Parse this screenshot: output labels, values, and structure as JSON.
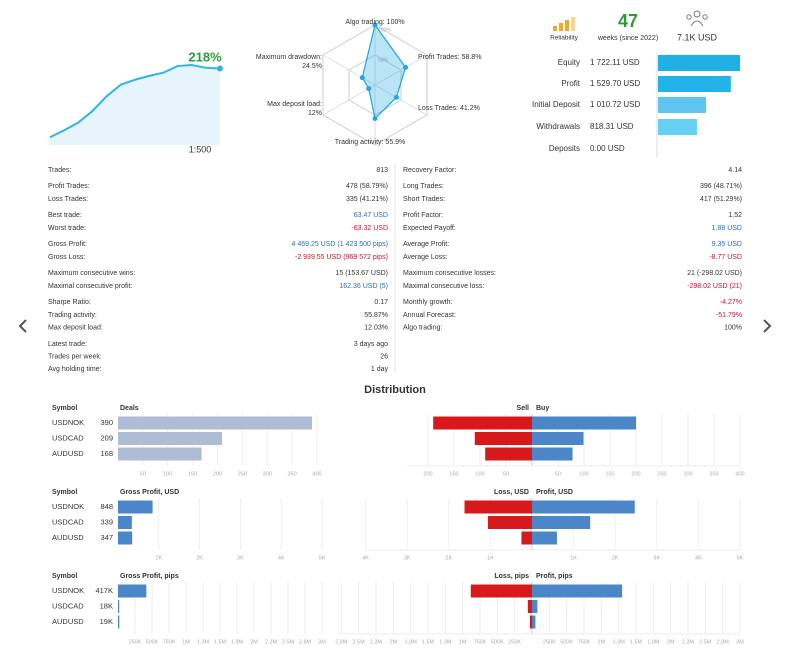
{
  "growth": {
    "values": [
      22,
      42,
      64,
      97,
      139,
      172,
      186,
      197,
      206,
      225,
      228,
      220,
      218
    ],
    "label": "218%",
    "leverage": "1:500",
    "color": "#2eb4e6"
  },
  "radar": {
    "labels": [
      [
        "Algo trading: 100%"
      ],
      [
        "Profit Trades: 58.8%"
      ],
      [
        "Loss Trades: 41.2%"
      ],
      [
        "Trading activity: 55.9%"
      ],
      [
        "Max deposit load:",
        "12%"
      ],
      [
        "Maximum drawdown:",
        "24.5%"
      ]
    ],
    "values": [
      100,
      58.8,
      41.2,
      55.9,
      12,
      24.5
    ],
    "ticks": [
      {
        "value": 50,
        "label": "50%"
      },
      {
        "value": 100,
        "label": "100%"
      }
    ],
    "color": "#1ea7e1"
  },
  "summary": {
    "reliability_label": "Reliability",
    "weeks": 47,
    "weeks_label": "weeks (since 2022)",
    "funds": "7.1K USD"
  },
  "balance": {
    "categories": [
      "Equity",
      "Profit",
      "Initial Deposit",
      "Withdrawals",
      "Deposits"
    ],
    "values": [
      1722.11,
      1529.7,
      1010.72,
      818.31,
      0
    ],
    "value_labels": [
      "1 722.11 USD",
      "1 529.70 USD",
      "1 010.72 USD",
      "818.31 USD",
      "0.00 USD"
    ],
    "colors": [
      "#1fb0e6",
      "#22b4e8",
      "#5fc4ee",
      "#66d0f2",
      "#66d0f2"
    ]
  },
  "stats": {
    "columns": [
      [
        [
          {
            "label": "Trades:",
            "value": "813"
          }
        ],
        [
          {
            "label": "Profit Trades:",
            "value": "478 (58.79%)"
          },
          {
            "label": "Loss Trades:",
            "value": "335 (41.21%)"
          }
        ],
        [
          {
            "label": "Best trade:",
            "value": "63.47 USD",
            "color": "#2a6cbf"
          },
          {
            "label": "Worst trade:",
            "value": "-63.32 USD",
            "color": "#d0112b"
          }
        ],
        [
          {
            "label": "Gross Profit:",
            "value": "4 469.25 USD (1 423 500 pips)",
            "color": "#2a6cbf"
          },
          {
            "label": "Gross Loss:",
            "value": "-2 939.55 USD (969 572 pips)",
            "color": "#d0112b"
          }
        ],
        [
          {
            "label": "Maximum consecutive wins:",
            "value": "15 (153.67 USD)"
          },
          {
            "label": "Maximal consecutive profit:",
            "value": "162.36 USD (5)",
            "color": "#2a6cbf"
          }
        ],
        [
          {
            "label": "Sharpe Ratio:",
            "value": "0.17"
          },
          {
            "label": "Trading activity:",
            "value": "55.87%"
          },
          {
            "label": "Max deposit load:",
            "value": "12.03%"
          }
        ],
        [
          {
            "label": "Latest trade:",
            "value": "3 days ago"
          },
          {
            "label": "Trades per week:",
            "value": "26"
          },
          {
            "label": "Avg holding time:",
            "value": "1 day"
          }
        ]
      ],
      [
        [
          {
            "label": "Recovery Factor:",
            "value": "4.14"
          }
        ],
        [
          {
            "label": "Long Trades:",
            "value": "396 (48.71%)"
          },
          {
            "label": "Short Trades:",
            "value": "417 (51.29%)"
          }
        ],
        [
          {
            "label": "Profit Factor:",
            "value": "1.52"
          },
          {
            "label": "Expected Payoff:",
            "value": "1.88 USD",
            "color": "#2a6cbf"
          }
        ],
        [
          {
            "label": "Average Profit:",
            "value": "9.35 USD",
            "color": "#2a6cbf"
          },
          {
            "label": "Average Loss:",
            "value": "-8.77 USD",
            "color": "#d0112b"
          }
        ],
        [
          {
            "label": "Maximum consecutive losses:",
            "value": "21 (-298.02 USD)"
          },
          {
            "label": "Maximal consecutive loss:",
            "value": "-298.02 USD (21)",
            "color": "#d0112b"
          }
        ],
        [
          {
            "label": "Monthly growth:",
            "value": "-4.27%",
            "color": "#d0112b"
          },
          {
            "label": "Annual Forecast:",
            "value": "-51.79%",
            "color": "#d0112b"
          },
          {
            "label": "Algo trading:",
            "value": "100%"
          }
        ]
      ]
    ]
  },
  "distribution": {
    "title": "Distribution",
    "panels": [
      {
        "symbol_header": "Symbol",
        "categories": [
          "USDNOK",
          "USDCAD",
          "AUDUSD"
        ],
        "left": {
          "title": "Deals",
          "values": [
            390,
            209,
            168
          ],
          "color": "#aebcd4",
          "xlim": [
            0,
            410
          ],
          "xticks": [
            50,
            100,
            150,
            200,
            250,
            300,
            350,
            400
          ]
        },
        "right": {
          "neg_title": "Sell",
          "pos_title": "Buy",
          "neg_values": [
            190,
            110,
            90
          ],
          "pos_values": [
            200,
            99,
            78
          ],
          "neg_color": "#d7191c",
          "pos_color": "#4a86c8",
          "neg_xlim": [
            0,
            240
          ],
          "pos_xlim": [
            0,
            400
          ],
          "neg_xticks": [
            50,
            100,
            150,
            200
          ],
          "pos_xticks": [
            50,
            100,
            150,
            200,
            250,
            300,
            350,
            400
          ]
        }
      },
      {
        "symbol_header": "Symbol",
        "categories": [
          "USDNOK",
          "USDCAD",
          "AUDUSD"
        ],
        "left": {
          "title": "Gross Profit, USD",
          "values": [
            848,
            339,
            347
          ],
          "color": "#4a86c8",
          "xlim": [
            0,
            5000
          ],
          "xticks": [
            {
              "value": 1000,
              "label": "1K"
            },
            {
              "value": 2000,
              "label": "2K"
            },
            {
              "value": 3000,
              "label": "3K"
            },
            {
              "value": 4000,
              "label": "4K"
            },
            {
              "value": 5000,
              "label": "5K"
            }
          ]
        },
        "right": {
          "neg_title": "Loss, USD",
          "pos_title": "Profit, USD",
          "neg_values": [
            1622,
            1060,
            253
          ],
          "pos_values": [
            2470,
            1399,
            600
          ],
          "neg_color": "#d7191c",
          "pos_color": "#4a86c8",
          "neg_xlim": [
            0,
            4000
          ],
          "pos_xlim": [
            0,
            5000
          ],
          "neg_xticks": [
            {
              "value": 1000,
              "label": "1K"
            },
            {
              "value": 2000,
              "label": "2K"
            },
            {
              "value": 3000,
              "label": "3K"
            },
            {
              "value": 4000,
              "label": "4K"
            }
          ],
          "pos_xticks": [
            {
              "value": 1000,
              "label": "1K"
            },
            {
              "value": 2000,
              "label": "2K"
            },
            {
              "value": 3000,
              "label": "3K"
            },
            {
              "value": 4000,
              "label": "4K"
            },
            {
              "value": 5000,
              "label": "5K"
            }
          ]
        }
      },
      {
        "symbol_header": "Symbol",
        "categories": [
          "USDNOK",
          "USDCAD",
          "AUDUSD"
        ],
        "left": {
          "title": "Gross Profit, pips",
          "values": [
            417000,
            18000,
            19000
          ],
          "value_labels": [
            "417K",
            "18K",
            "19K"
          ],
          "color": "#4a86c8",
          "xlim": [
            0,
            3000000
          ],
          "xticks": [
            {
              "value": 250000,
              "label": "250K"
            },
            {
              "value": 500000,
              "label": "500K"
            },
            {
              "value": 750000,
              "label": "750K"
            },
            {
              "value": 1000000,
              "label": "1M"
            },
            {
              "value": 1250000,
              "label": "1.3M"
            },
            {
              "value": 1500000,
              "label": "1.5M"
            },
            {
              "value": 1750000,
              "label": "1.8M"
            },
            {
              "value": 2000000,
              "label": "2M"
            },
            {
              "value": 2250000,
              "label": "2.3M"
            },
            {
              "value": 2500000,
              "label": "2.5M"
            },
            {
              "value": 2750000,
              "label": "2.8M"
            },
            {
              "value": 3000000,
              "label": "3M"
            }
          ]
        },
        "right": {
          "neg_title": "Loss, pips",
          "pos_title": "Profit, pips",
          "neg_values": [
            883000,
            60000,
            30000
          ],
          "pos_values": [
            1300000,
            78000,
            49000
          ],
          "neg_color": "#d7191c",
          "pos_color": "#4a86c8",
          "neg_xlim": [
            0,
            2800000
          ],
          "pos_xlim": [
            0,
            3000000
          ],
          "neg_xticks": [
            {
              "value": 250000,
              "label": "250K"
            },
            {
              "value": 500000,
              "label": "500K"
            },
            {
              "value": 750000,
              "label": "750K"
            },
            {
              "value": 1000000,
              "label": "1M"
            },
            {
              "value": 1250000,
              "label": "1.3M"
            },
            {
              "value": 1500000,
              "label": "1.5M"
            },
            {
              "value": 1750000,
              "label": "1.8M"
            },
            {
              "value": 2000000,
              "label": "2M"
            },
            {
              "value": 2250000,
              "label": "2.3M"
            },
            {
              "value": 2500000,
              "label": "2.5M"
            },
            {
              "value": 2750000,
              "label": "2.8M"
            }
          ],
          "pos_xticks": [
            {
              "value": 250000,
              "label": "250K"
            },
            {
              "value": 500000,
              "label": "500K"
            },
            {
              "value": 750000,
              "label": "750K"
            },
            {
              "value": 1000000,
              "label": "1M"
            },
            {
              "value": 1250000,
              "label": "1.3M"
            },
            {
              "value": 1500000,
              "label": "1.5M"
            },
            {
              "value": 1750000,
              "label": "1.8M"
            },
            {
              "value": 2000000,
              "label": "2M"
            },
            {
              "value": 2250000,
              "label": "2.3M"
            },
            {
              "value": 2500000,
              "label": "2.5M"
            },
            {
              "value": 2750000,
              "label": "2.8M"
            },
            {
              "value": 3000000,
              "label": "3M"
            }
          ]
        }
      }
    ]
  }
}
